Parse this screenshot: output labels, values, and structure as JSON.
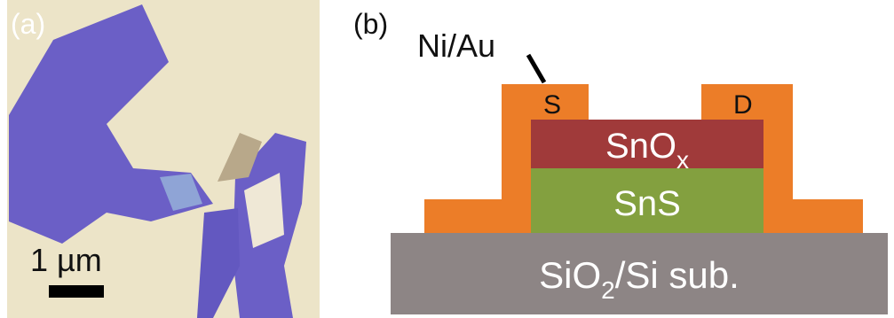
{
  "panel_a": {
    "label": "(a)",
    "scale_bar": "1 µm"
  },
  "panel_b": {
    "label": "(b)",
    "contact_metal": "Ni/Au",
    "source": "S",
    "drain": "D",
    "top_layer": {
      "text": "SnO",
      "subscript": "x"
    },
    "channel": "SnS",
    "substrate": {
      "text": "SiO",
      "subscript": "2",
      "rest": "/Si sub."
    }
  }
}
